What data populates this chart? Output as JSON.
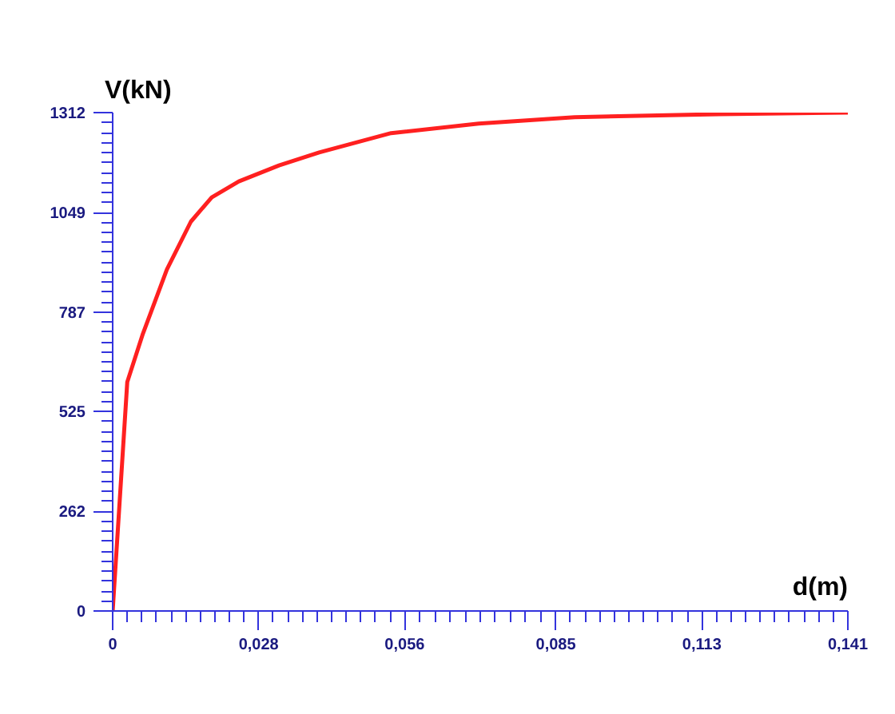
{
  "chart_data": {
    "type": "line",
    "xlabel": "d(m)",
    "ylabel": "V(kN)",
    "x": [
      0,
      0.0028,
      0.0058,
      0.0104,
      0.015,
      0.019,
      0.0242,
      0.0319,
      0.0396,
      0.0534,
      0.0702,
      0.0886,
      0.1163,
      0.141
    ],
    "series": [
      {
        "color": "#ff2020",
        "values": [
          0,
          603,
          730,
          899,
          1025,
          1089,
          1131,
          1173,
          1207,
          1258,
          1283,
          1300,
          1308,
          1312
        ]
      }
    ],
    "xlim": [
      0,
      0.141
    ],
    "ylim": [
      0,
      1312
    ],
    "xticks": [
      0,
      {
        "value": 0.028,
        "label": "0,028"
      },
      {
        "value": 0.056,
        "label": "0,056"
      },
      {
        "value": 0.085,
        "label": "0,085"
      },
      {
        "value": 0.113,
        "label": "0,113"
      },
      {
        "value": 0.141,
        "label": "0,141"
      }
    ],
    "yticks": [
      0,
      262,
      525,
      787,
      1049,
      1312
    ],
    "grid": false,
    "marker": "none",
    "line_style": "solid"
  }
}
